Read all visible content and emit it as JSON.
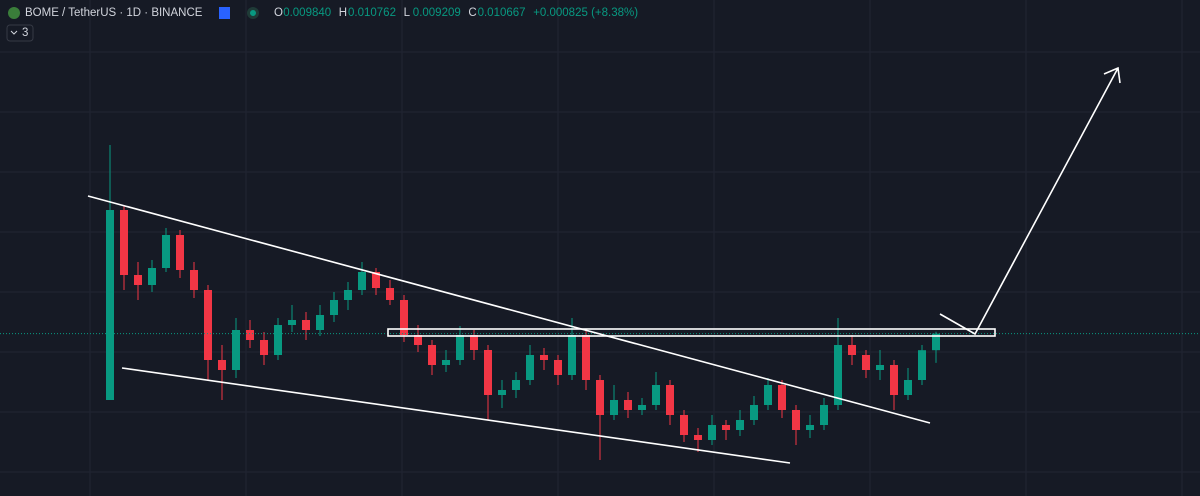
{
  "chart_data": {
    "type": "candlestick",
    "title": "BOME / TetherUS · 1D · BINANCE",
    "ohlc_labels": [
      {
        "key": "O",
        "value": "0.009840"
      },
      {
        "key": "H",
        "value": "0.010762"
      },
      {
        "key": "L",
        "value": "0.009209"
      },
      {
        "key": "C",
        "value": "0.010667"
      }
    ],
    "change": "+0.000825 (+8.38%)",
    "indicator_count": "3",
    "up_color": "#089981",
    "down_color": "#f23645",
    "ylim": [
      0.00255,
      0.02735
    ],
    "series": [
      {
        "name": "BOME / TetherUS",
        "open": [
          0.00735,
          0.01685,
          0.0136,
          0.0131,
          0.01395,
          0.0156,
          0.01385,
          0.01285,
          0.00935,
          0.00885,
          0.01085,
          0.01035,
          0.0096,
          0.0111,
          0.01135,
          0.01085,
          0.0116,
          0.01235,
          0.01285,
          0.01375,
          0.01295,
          0.01235,
          0.0106,
          0.0101,
          0.0091,
          0.00935,
          0.0106,
          0.00985,
          0.0076,
          0.00785,
          0.00835,
          0.0096,
          0.00935,
          0.0086,
          0.0106,
          0.00835,
          0.0066,
          0.00735,
          0.00685,
          0.0071,
          0.0081,
          0.0066,
          0.0056,
          0.00535,
          0.0061,
          0.00585,
          0.00635,
          0.0071,
          0.0081,
          0.00685,
          0.00585,
          0.0061,
          0.0071,
          0.0101,
          0.0096,
          0.00885,
          0.0091,
          0.0076,
          0.00835,
          0.00984
        ],
        "high": [
          0.0201,
          0.0171,
          0.01425,
          0.01435,
          0.01595,
          0.01585,
          0.01425,
          0.0131,
          0.0101,
          0.01145,
          0.01135,
          0.01075,
          0.01145,
          0.0121,
          0.01175,
          0.0121,
          0.01275,
          0.01325,
          0.01425,
          0.01395,
          0.01335,
          0.0126,
          0.0111,
          0.01035,
          0.00985,
          0.01105,
          0.01085,
          0.0101,
          0.00835,
          0.00875,
          0.0101,
          0.00995,
          0.0096,
          0.01145,
          0.01085,
          0.0086,
          0.0081,
          0.00775,
          0.00745,
          0.00875,
          0.00835,
          0.00685,
          0.00595,
          0.0066,
          0.00635,
          0.00685,
          0.00755,
          0.00845,
          0.00835,
          0.0071,
          0.0066,
          0.00745,
          0.01145,
          0.0106,
          0.00985,
          0.00985,
          0.00935,
          0.00895,
          0.0101,
          0.010762
        ],
        "low": [
          0.00735,
          0.01285,
          0.01235,
          0.01275,
          0.01375,
          0.01345,
          0.01245,
          0.00835,
          0.00735,
          0.00845,
          0.00995,
          0.0091,
          0.00935,
          0.01075,
          0.01035,
          0.01055,
          0.01125,
          0.01185,
          0.0126,
          0.0126,
          0.0121,
          0.01025,
          0.00975,
          0.0086,
          0.00875,
          0.0091,
          0.00935,
          0.00635,
          0.00695,
          0.00745,
          0.0081,
          0.00885,
          0.0081,
          0.00835,
          0.00785,
          0.00435,
          0.00635,
          0.00645,
          0.0066,
          0.00685,
          0.0061,
          0.00525,
          0.00475,
          0.0051,
          0.00535,
          0.00555,
          0.0061,
          0.00685,
          0.00645,
          0.0051,
          0.00545,
          0.00585,
          0.00685,
          0.0091,
          0.00845,
          0.00835,
          0.00685,
          0.00735,
          0.0081,
          0.009209
        ],
        "close": [
          0.01685,
          0.0136,
          0.0131,
          0.01395,
          0.0156,
          0.01385,
          0.01285,
          0.00935,
          0.00885,
          0.01085,
          0.01035,
          0.0096,
          0.0111,
          0.01135,
          0.01085,
          0.0116,
          0.01235,
          0.01285,
          0.01375,
          0.01295,
          0.01235,
          0.0106,
          0.0101,
          0.0091,
          0.00935,
          0.0106,
          0.00985,
          0.0076,
          0.00785,
          0.00835,
          0.0096,
          0.00935,
          0.0086,
          0.0106,
          0.00835,
          0.0066,
          0.00735,
          0.00685,
          0.0071,
          0.0081,
          0.0066,
          0.0056,
          0.00535,
          0.0061,
          0.00585,
          0.00635,
          0.0071,
          0.0081,
          0.00685,
          0.00585,
          0.0061,
          0.0071,
          0.0101,
          0.0096,
          0.00885,
          0.0091,
          0.0076,
          0.00835,
          0.00984,
          0.010667
        ]
      }
    ]
  }
}
